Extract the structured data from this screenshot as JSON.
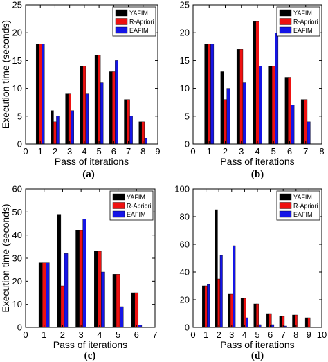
{
  "colors": {
    "yafim": "#000000",
    "rapriori": "#ee1111",
    "eafim": "#1515e6"
  },
  "chart_data": [
    {
      "type": "bar",
      "panel_label": "(a)",
      "xlabel": "Pass of iterations",
      "ylabel": "Execution time (seconds)",
      "xlim": [
        0,
        9
      ],
      "ylim": [
        0,
        25
      ],
      "xticks": [
        0,
        1,
        2,
        3,
        4,
        5,
        6,
        7,
        8,
        9
      ],
      "yticks": [
        0,
        5,
        10,
        15,
        20,
        25
      ],
      "categories": [
        1,
        2,
        3,
        4,
        5,
        6,
        7,
        8
      ],
      "legend": "top-right",
      "series": [
        {
          "name": "YAFIM",
          "values": [
            18,
            6,
            9,
            14,
            16,
            13,
            8,
            4
          ]
        },
        {
          "name": "R-Apriori",
          "values": [
            18,
            4,
            9,
            14,
            16,
            13,
            8,
            4
          ]
        },
        {
          "name": "EAFIM",
          "values": [
            18,
            5,
            6,
            9,
            11,
            15,
            5,
            1
          ]
        }
      ]
    },
    {
      "type": "bar",
      "panel_label": "(b)",
      "xlabel": "Pass of iterations",
      "ylabel": "",
      "xlim": [
        0,
        8
      ],
      "ylim": [
        0,
        25
      ],
      "xticks": [
        0,
        1,
        2,
        3,
        4,
        5,
        6,
        7,
        8
      ],
      "yticks": [
        0,
        5,
        10,
        15,
        20,
        25
      ],
      "categories": [
        1,
        2,
        3,
        4,
        5,
        6,
        7
      ],
      "legend": "top-right",
      "series": [
        {
          "name": "YAFIM",
          "values": [
            18,
            13,
            17,
            22,
            14,
            12,
            8
          ]
        },
        {
          "name": "R-Apriori",
          "values": [
            18,
            8,
            17,
            22,
            14,
            12,
            8
          ]
        },
        {
          "name": "EAFIM",
          "values": [
            18,
            10,
            11,
            14,
            20,
            7,
            4
          ]
        }
      ]
    },
    {
      "type": "bar",
      "panel_label": "(c)",
      "xlabel": "Pass of iterations",
      "ylabel": "Execution time (seconds)",
      "xlim": [
        0,
        7
      ],
      "ylim": [
        0,
        60
      ],
      "xticks": [
        0,
        1,
        2,
        3,
        4,
        5,
        6,
        7
      ],
      "yticks": [
        0,
        10,
        20,
        30,
        40,
        50,
        60
      ],
      "categories": [
        1,
        2,
        3,
        4,
        5,
        6
      ],
      "legend": "top-right",
      "series": [
        {
          "name": "YAFIM",
          "values": [
            28,
            49,
            42,
            33,
            23,
            15
          ]
        },
        {
          "name": "R-Apriori",
          "values": [
            28,
            18,
            42,
            33,
            23,
            15
          ]
        },
        {
          "name": "EAFIM",
          "values": [
            28,
            32,
            47,
            24,
            9,
            1
          ]
        }
      ]
    },
    {
      "type": "bar",
      "panel_label": "(d)",
      "xlabel": "Pass of iterations",
      "ylabel": "",
      "xlim": [
        0,
        10
      ],
      "ylim": [
        0,
        100
      ],
      "xticks": [
        0,
        1,
        2,
        3,
        4,
        5,
        6,
        7,
        8,
        9,
        10
      ],
      "yticks": [
        0,
        20,
        40,
        60,
        80,
        100
      ],
      "categories": [
        1,
        2,
        3,
        4,
        5,
        6,
        7,
        8,
        9
      ],
      "legend": "top-right",
      "series": [
        {
          "name": "YAFIM",
          "values": [
            30,
            85,
            24,
            21,
            17,
            10,
            8,
            9,
            7
          ]
        },
        {
          "name": "R-Apriori",
          "values": [
            30,
            35,
            24,
            21,
            17,
            10,
            8,
            9,
            7
          ]
        },
        {
          "name": "EAFIM",
          "values": [
            31,
            52,
            59,
            7,
            2,
            2,
            1,
            0,
            0
          ]
        }
      ]
    }
  ]
}
